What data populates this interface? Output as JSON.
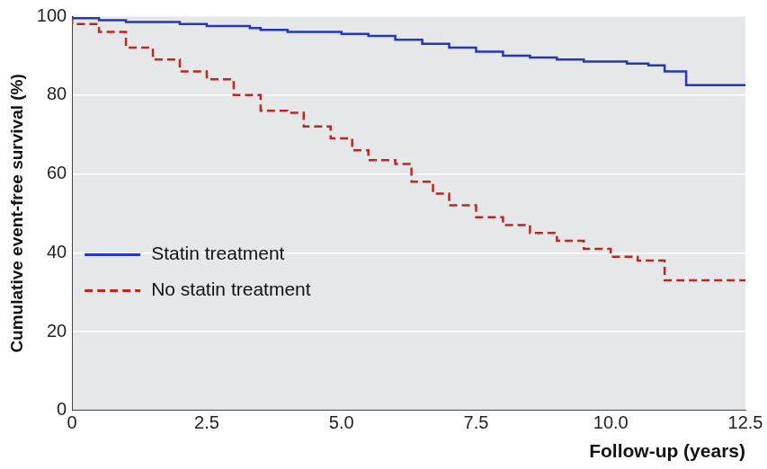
{
  "chart_data": {
    "type": "line",
    "x_label": "Follow-up (years)",
    "y_label": "Cumulative event-free survival (%)",
    "xlim": [
      0,
      12.5
    ],
    "xticks": [
      0,
      2.5,
      {
        "value": 5,
        "label": "5.0"
      },
      7.5,
      {
        "value": 10,
        "label": "10.0"
      },
      12.5
    ],
    "ylim": [
      0,
      100
    ],
    "yticks": [
      0,
      20,
      40,
      60,
      80,
      100
    ],
    "grid": true,
    "legend": "lower left",
    "series": [
      {
        "name": "Statin treatment",
        "color": "#2536b8",
        "line_style": "solid",
        "x": [
          0,
          0.5,
          1,
          2,
          2.5,
          3.3,
          3.5,
          4,
          5,
          5.5,
          6,
          6.5,
          7,
          7.5,
          8,
          8.5,
          9,
          9.5,
          10.3,
          10.7,
          11,
          11.4,
          11.6,
          12.5
        ],
        "values": [
          100,
          99.5,
          99,
          98.5,
          98,
          97.5,
          97,
          96.5,
          96,
          95.5,
          95,
          94,
          93,
          92,
          91,
          90,
          89.5,
          89,
          88.5,
          88,
          87.5,
          86,
          82.5,
          82.5
        ]
      },
      {
        "name": "No statin treatment",
        "color": "#b52a25",
        "line_style": "dashed",
        "x": [
          0,
          0.5,
          1,
          1.5,
          2,
          2.5,
          3,
          3.5,
          4,
          4.3,
          4.8,
          5.2,
          5.5,
          6,
          6.3,
          6.7,
          7,
          7.5,
          8,
          8.5,
          9,
          9.5,
          10,
          10.5,
          11,
          11.5,
          12.5
        ],
        "values": [
          100,
          98,
          96,
          92,
          89,
          86,
          84,
          80,
          76,
          75.5,
          72,
          69,
          66,
          63.5,
          62.5,
          58,
          55,
          52,
          49,
          47,
          45,
          43,
          41,
          39,
          38,
          33,
          33
        ]
      }
    ]
  }
}
